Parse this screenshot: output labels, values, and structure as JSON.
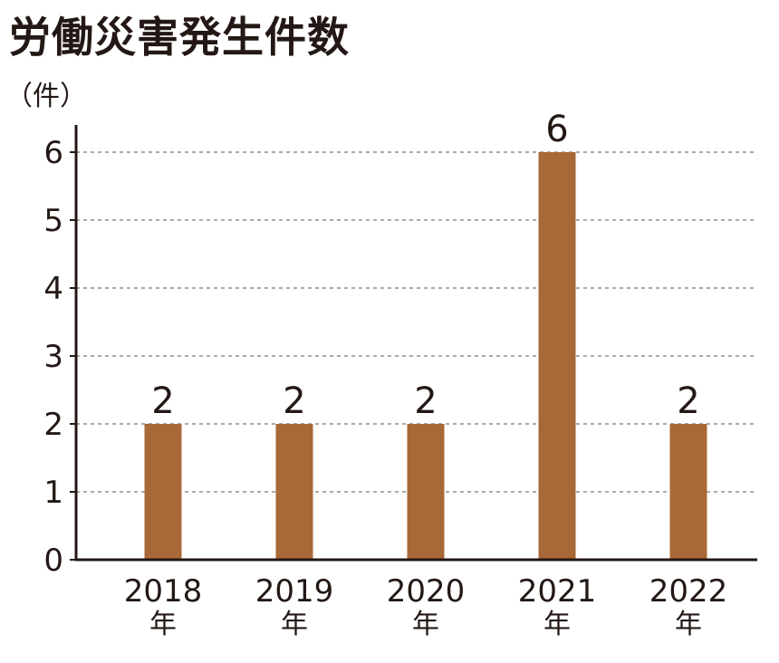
{
  "chart_data": {
    "type": "bar",
    "title": "労働災害発生件数",
    "unit_label": "（件）",
    "categories": [
      "2018年",
      "2019年",
      "2020年",
      "2021年",
      "2022年"
    ],
    "category_lines": [
      [
        "2018",
        "年"
      ],
      [
        "2019",
        "年"
      ],
      [
        "2020",
        "年"
      ],
      [
        "2021",
        "年"
      ],
      [
        "2022",
        "年"
      ]
    ],
    "values": [
      2,
      2,
      2,
      6,
      2
    ],
    "data_labels": [
      "2",
      "2",
      "2",
      "6",
      "2"
    ],
    "y_ticks": [
      "0",
      "1",
      "2",
      "3",
      "4",
      "5",
      "6"
    ],
    "ylim": [
      0,
      6
    ],
    "grid": true,
    "grid_style": "dashed",
    "bar_color": "#a86837",
    "axis_color": "#231815",
    "grid_color": "#aaaaaa"
  }
}
